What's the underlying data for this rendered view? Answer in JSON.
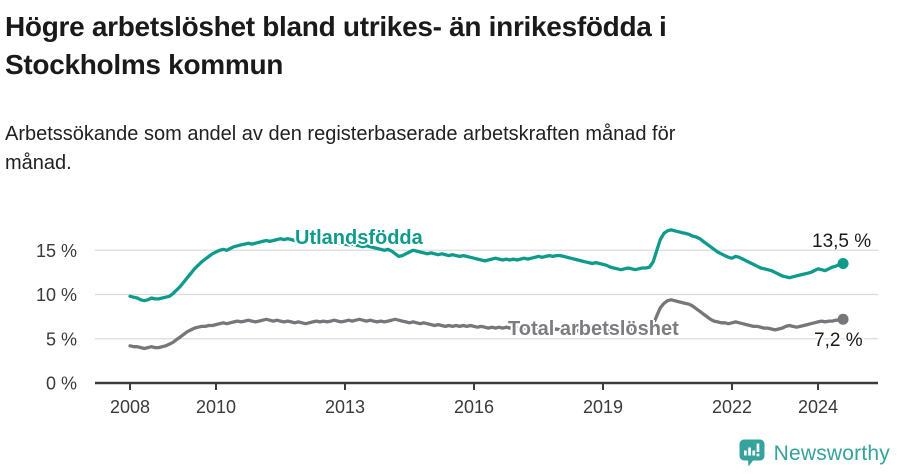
{
  "header": {
    "title_line1": "Högre arbetslöshet bland utrikes- än inrikesfödda i",
    "title_line2": "Stockholms kommun",
    "subtitle_line1": "Arbetssökande som andel av den registerbaserade arbetskraften månad för",
    "subtitle_line2": "månad."
  },
  "chart_data": {
    "type": "line",
    "title": "Högre arbetslöshet bland utrikes- än inrikesfödda i Stockholms kommun",
    "subtitle": "Arbetssökande som andel av den registerbaserade arbetskraften månad för månad.",
    "frequency": "monthly",
    "x_start": "2008-01",
    "x_end": "2024-08",
    "xticks": [
      2008,
      2010,
      2013,
      2016,
      2019,
      2022,
      2024
    ],
    "yticks": [
      {
        "value": 0,
        "label": "0 %"
      },
      {
        "value": 5,
        "label": "5 %"
      },
      {
        "value": 10,
        "label": "10 %"
      },
      {
        "value": 15,
        "label": "15 %"
      }
    ],
    "ylim": [
      0,
      18
    ],
    "grid": "horizontal",
    "legend_position": "inline-labels",
    "series": [
      {
        "name": "Utlandsfödda",
        "color": "#0f9b8c",
        "end_label": "13,5 %",
        "end_value": 13.5,
        "values": [
          9.8,
          9.7,
          9.6,
          9.4,
          9.3,
          9.4,
          9.6,
          9.5,
          9.5,
          9.6,
          9.7,
          9.8,
          10.1,
          10.5,
          10.9,
          11.4,
          11.9,
          12.4,
          12.9,
          13.3,
          13.7,
          14.0,
          14.3,
          14.6,
          14.8,
          15.0,
          15.1,
          15.0,
          15.2,
          15.4,
          15.5,
          15.6,
          15.7,
          15.8,
          15.7,
          15.8,
          15.9,
          16.0,
          16.1,
          16.0,
          16.1,
          16.2,
          16.3,
          16.2,
          16.3,
          16.2,
          16.1,
          16.0,
          15.9,
          16.0,
          16.1,
          16.0,
          16.1,
          16.2,
          16.1,
          16.0,
          15.9,
          16.0,
          15.9,
          15.8,
          15.7,
          15.6,
          15.7,
          15.6,
          15.5,
          15.4,
          15.5,
          15.4,
          15.3,
          15.2,
          15.1,
          15.0,
          15.1,
          14.9,
          14.6,
          14.3,
          14.4,
          14.6,
          14.8,
          15.0,
          14.9,
          14.8,
          14.7,
          14.6,
          14.7,
          14.6,
          14.5,
          14.6,
          14.5,
          14.4,
          14.5,
          14.4,
          14.3,
          14.4,
          14.3,
          14.2,
          14.1,
          14.0,
          13.9,
          13.8,
          13.9,
          14.0,
          14.1,
          14.0,
          13.9,
          14.0,
          13.9,
          14.0,
          13.9,
          14.0,
          14.1,
          14.0,
          14.1,
          14.2,
          14.3,
          14.2,
          14.3,
          14.4,
          14.3,
          14.4,
          14.4,
          14.3,
          14.2,
          14.1,
          14.0,
          13.9,
          13.8,
          13.7,
          13.6,
          13.5,
          13.6,
          13.5,
          13.4,
          13.3,
          13.1,
          13.0,
          12.9,
          12.8,
          12.9,
          13.0,
          12.9,
          12.8,
          12.9,
          13.0,
          13.0,
          13.1,
          13.7,
          15.0,
          16.2,
          16.9,
          17.2,
          17.3,
          17.2,
          17.1,
          17.0,
          16.9,
          16.8,
          16.6,
          16.5,
          16.3,
          16.0,
          15.7,
          15.4,
          15.1,
          14.8,
          14.6,
          14.4,
          14.2,
          14.1,
          14.3,
          14.2,
          14.0,
          13.8,
          13.6,
          13.4,
          13.2,
          13.0,
          12.9,
          12.8,
          12.7,
          12.5,
          12.3,
          12.1,
          12.0,
          11.9,
          12.0,
          12.1,
          12.2,
          12.3,
          12.4,
          12.5,
          12.7,
          12.9,
          12.8,
          12.7,
          12.9,
          13.1,
          13.2,
          13.4,
          13.5
        ]
      },
      {
        "name": "Total arbetslöshet",
        "color": "#77777b",
        "end_label": "7,2 %",
        "end_value": 7.2,
        "values": [
          4.2,
          4.1,
          4.1,
          4.0,
          3.9,
          4.0,
          4.1,
          4.0,
          4.0,
          4.1,
          4.2,
          4.4,
          4.6,
          4.9,
          5.2,
          5.5,
          5.8,
          6.0,
          6.2,
          6.3,
          6.4,
          6.4,
          6.5,
          6.5,
          6.6,
          6.7,
          6.8,
          6.7,
          6.8,
          6.9,
          7.0,
          6.9,
          7.0,
          7.1,
          7.0,
          6.9,
          7.0,
          7.1,
          7.2,
          7.1,
          7.0,
          7.1,
          7.0,
          6.9,
          7.0,
          6.9,
          6.8,
          6.9,
          6.8,
          6.7,
          6.8,
          6.9,
          7.0,
          6.9,
          7.0,
          6.9,
          7.0,
          7.1,
          7.0,
          6.9,
          7.0,
          7.1,
          7.0,
          7.1,
          7.2,
          7.1,
          7.0,
          7.1,
          7.0,
          6.9,
          7.0,
          6.9,
          7.0,
          7.1,
          7.2,
          7.1,
          7.0,
          6.9,
          6.8,
          6.9,
          6.8,
          6.7,
          6.8,
          6.7,
          6.6,
          6.5,
          6.6,
          6.5,
          6.4,
          6.5,
          6.4,
          6.5,
          6.4,
          6.5,
          6.4,
          6.5,
          6.4,
          6.3,
          6.4,
          6.3,
          6.2,
          6.3,
          6.2,
          6.3,
          6.2,
          6.3,
          6.2,
          6.3,
          6.2,
          6.1,
          6.2,
          6.1,
          6.2,
          6.1,
          6.0,
          6.1,
          6.0,
          6.1,
          6.0,
          6.1,
          6.0,
          6.1,
          6.0,
          5.9,
          6.0,
          5.9,
          6.0,
          5.9,
          6.0,
          5.9,
          6.0,
          5.9,
          6.0,
          5.9,
          6.0,
          5.9,
          6.0,
          6.0,
          5.9,
          6.0,
          6.0,
          6.0,
          6.0,
          6.1,
          6.1,
          6.2,
          6.6,
          7.6,
          8.5,
          9.0,
          9.3,
          9.4,
          9.3,
          9.2,
          9.1,
          9.0,
          8.9,
          8.7,
          8.4,
          8.1,
          7.8,
          7.5,
          7.2,
          7.0,
          6.9,
          6.8,
          6.8,
          6.7,
          6.8,
          6.9,
          6.8,
          6.7,
          6.6,
          6.5,
          6.4,
          6.4,
          6.3,
          6.2,
          6.2,
          6.1,
          6.0,
          6.1,
          6.2,
          6.4,
          6.5,
          6.4,
          6.3,
          6.4,
          6.5,
          6.6,
          6.7,
          6.8,
          6.9,
          7.0,
          6.9,
          7.0,
          7.0,
          7.1,
          7.1,
          7.2
        ]
      }
    ]
  },
  "colors": {
    "accent_teal": "#0f9b8c",
    "line_gray": "#77777b",
    "grid": "#dcdcdc",
    "axis": "#3c3c3c",
    "text_dark": "#1a1a1a",
    "brand_teal": "#35a29b"
  },
  "footer": {
    "brand": "Newsworthy"
  }
}
